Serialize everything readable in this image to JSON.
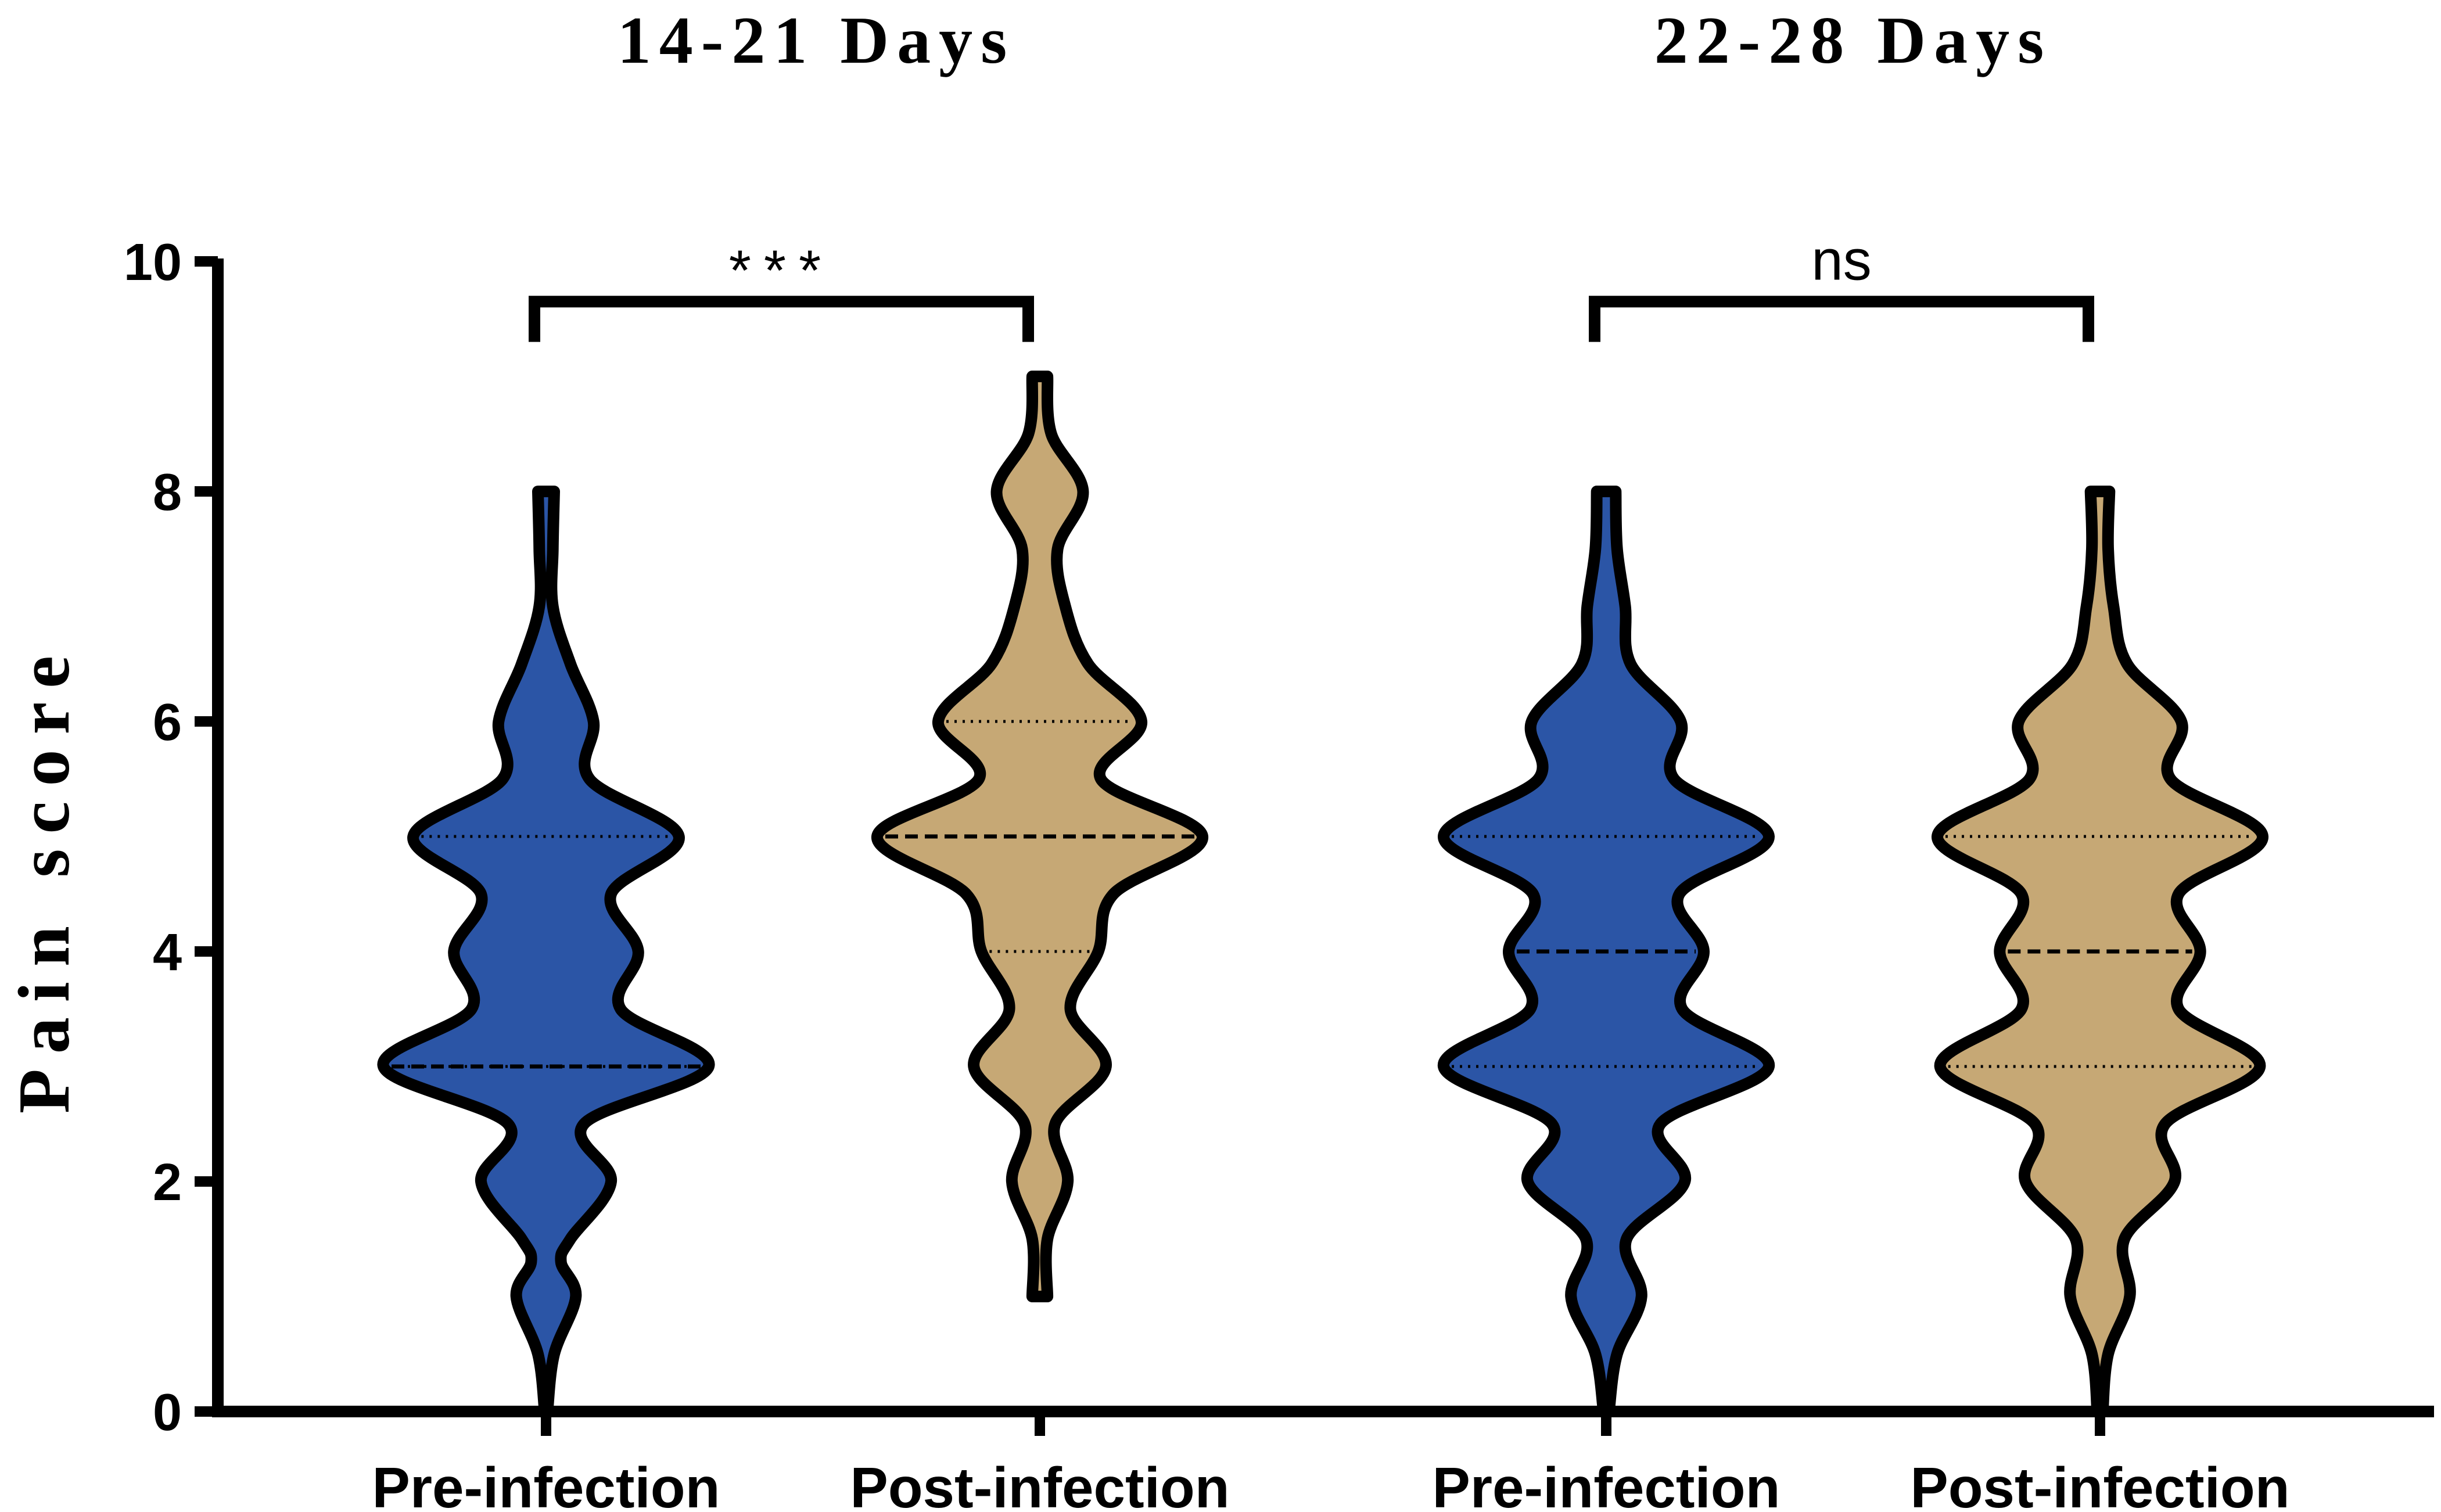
{
  "chart_data": {
    "type": "violin",
    "ylabel": "Pain score",
    "ylim": [
      0,
      10
    ],
    "yticks": [
      0,
      2,
      4,
      6,
      8,
      10
    ],
    "groups": [
      {
        "title": "14-21 Days",
        "comparison": "***",
        "violins": [
          {
            "category": "Pre-infection",
            "color": "#2b55a6",
            "min": 0,
            "max": 8,
            "q1": 3,
            "median": 3,
            "q3": 5,
            "density": [
              [
                0,
                1
              ],
              [
                0.5,
                6
              ],
              [
                1,
                22
              ],
              [
                1.3,
                11
              ],
              [
                1.5,
                18
              ],
              [
                2,
                48
              ],
              [
                2.5,
                28
              ],
              [
                3,
                120
              ],
              [
                3.5,
                55
              ],
              [
                4,
                68
              ],
              [
                4.5,
                48
              ],
              [
                5,
                98
              ],
              [
                5.5,
                32
              ],
              [
                6,
                35
              ],
              [
                6.5,
                18
              ],
              [
                7,
                5
              ],
              [
                7.5,
                5
              ],
              [
                8,
                6
              ]
            ]
          },
          {
            "category": "Post-infection",
            "color": "#c6a875",
            "min": 1,
            "max": 9,
            "q1": 4,
            "median": 5,
            "q3": 6,
            "density": [
              [
                1,
                6
              ],
              [
                1.5,
                6
              ],
              [
                2,
                22
              ],
              [
                2.5,
                12
              ],
              [
                3,
                52
              ],
              [
                3.5,
                24
              ],
              [
                4,
                46
              ],
              [
                4.5,
                58
              ],
              [
                5,
                128
              ],
              [
                5.5,
                48
              ],
              [
                6,
                80
              ],
              [
                6.5,
                38
              ],
              [
                7,
                20
              ],
              [
                7.5,
                14
              ],
              [
                8,
                34
              ],
              [
                8.5,
                9
              ],
              [
                9,
                6
              ]
            ]
          }
        ]
      },
      {
        "title": "22-28 Days",
        "comparison": "ns",
        "violins": [
          {
            "category": "Pre-infection",
            "color": "#2b55a6",
            "min": 0,
            "max": 8,
            "q1": 3,
            "median": 4,
            "q3": 5,
            "density": [
              [
                0,
                2
              ],
              [
                0.5,
                8
              ],
              [
                1,
                26
              ],
              [
                1.5,
                15
              ],
              [
                2,
                58
              ],
              [
                2.5,
                40
              ],
              [
                3,
                120
              ],
              [
                3.5,
                56
              ],
              [
                4,
                72
              ],
              [
                4.5,
                54
              ],
              [
                5,
                120
              ],
              [
                5.5,
                50
              ],
              [
                6,
                55
              ],
              [
                6.5,
                18
              ],
              [
                7,
                14
              ],
              [
                7.5,
                8
              ],
              [
                8,
                7
              ]
            ]
          },
          {
            "category": "Post-infection",
            "color": "#c6a875",
            "min": 0,
            "max": 8,
            "q1": 3,
            "median": 4,
            "q3": 5,
            "density": [
              [
                0,
                2
              ],
              [
                0.5,
                6
              ],
              [
                1,
                22
              ],
              [
                1.5,
                18
              ],
              [
                2,
                55
              ],
              [
                2.5,
                48
              ],
              [
                3,
                118
              ],
              [
                3.5,
                58
              ],
              [
                4,
                74
              ],
              [
                4.5,
                58
              ],
              [
                5,
                120
              ],
              [
                5.5,
                52
              ],
              [
                6,
                60
              ],
              [
                6.5,
                20
              ],
              [
                7,
                10
              ],
              [
                7.5,
                6
              ],
              [
                8,
                7
              ]
            ]
          }
        ]
      }
    ]
  }
}
